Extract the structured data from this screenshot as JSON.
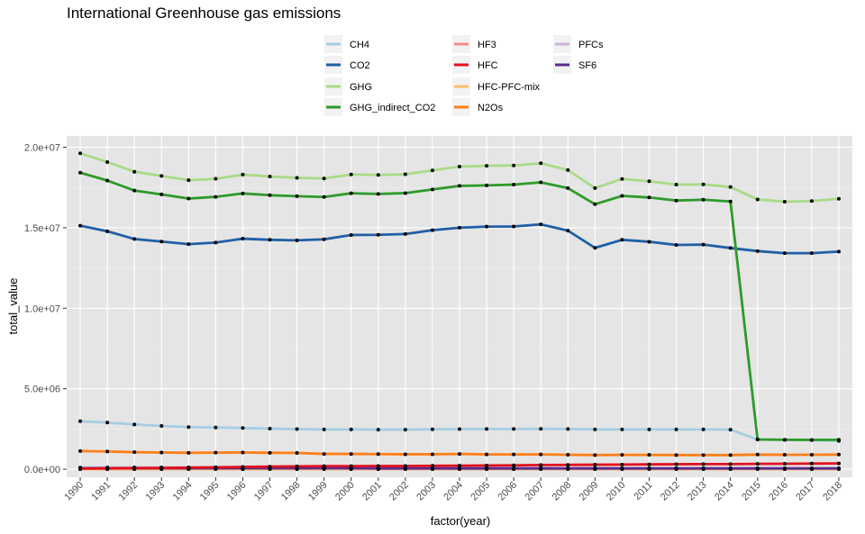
{
  "chart_data": {
    "type": "line",
    "title": "International Greenhouse gas emissions",
    "xlabel": "factor(year)",
    "ylabel": "total_value",
    "categories": [
      "1990",
      "1991",
      "1992",
      "1993",
      "1994",
      "1995",
      "1996",
      "1997",
      "1998",
      "1999",
      "2000",
      "2001",
      "2002",
      "2003",
      "2004",
      "2005",
      "2006",
      "2007",
      "2008",
      "2009",
      "2010",
      "2011",
      "2012",
      "2013",
      "2014",
      "2015",
      "2016",
      "2017",
      "2018"
    ],
    "ylim": [
      -500000,
      20700000
    ],
    "y_ticks": [
      0,
      5000000,
      10000000,
      15000000,
      20000000
    ],
    "y_tick_labels": [
      "0.0e+00",
      "5.0e+06",
      "1.0e+07",
      "1.5e+07",
      "2.0e+07"
    ],
    "grid": true,
    "legend_position": "top",
    "panel_background": "#e5e5e5",
    "series": [
      {
        "name": "CH4",
        "color": "#a6cee3",
        "values": [
          2980000,
          2900000,
          2780000,
          2690000,
          2620000,
          2590000,
          2560000,
          2520000,
          2490000,
          2470000,
          2470000,
          2460000,
          2460000,
          2480000,
          2490000,
          2500000,
          2500000,
          2510000,
          2500000,
          2470000,
          2470000,
          2470000,
          2470000,
          2470000,
          2460000,
          1840000,
          1820000,
          1810000,
          1760000
        ]
      },
      {
        "name": "CO2",
        "color": "#1f5fa6",
        "values": [
          15130000,
          14780000,
          14300000,
          14140000,
          13980000,
          14080000,
          14320000,
          14250000,
          14220000,
          14280000,
          14550000,
          14560000,
          14610000,
          14850000,
          15000000,
          15070000,
          15080000,
          15210000,
          14820000,
          13750000,
          14250000,
          14130000,
          13930000,
          13950000,
          13740000,
          13550000,
          13420000,
          13420000,
          13520000
        ]
      },
      {
        "name": "GHG",
        "color": "#a8db87",
        "values": [
          19620000,
          19080000,
          18480000,
          18220000,
          17950000,
          18040000,
          18300000,
          18180000,
          18100000,
          18060000,
          18310000,
          18280000,
          18320000,
          18560000,
          18800000,
          18850000,
          18870000,
          19010000,
          18580000,
          17460000,
          18030000,
          17890000,
          17680000,
          17690000,
          17530000,
          16760000,
          16620000,
          16660000,
          16800000
        ]
      },
      {
        "name": "GHG_indirect_CO2",
        "color": "#2e9a2a",
        "values": [
          18420000,
          17930000,
          17310000,
          17070000,
          16810000,
          16920000,
          17130000,
          17020000,
          16960000,
          16910000,
          17140000,
          17100000,
          17150000,
          17380000,
          17600000,
          17630000,
          17680000,
          17820000,
          17460000,
          16460000,
          16980000,
          16880000,
          16690000,
          16740000,
          16630000,
          1850000,
          1830000,
          1820000,
          1830000
        ]
      },
      {
        "name": "HF3",
        "color": "#f28b8b",
        "values": [
          10000,
          10000,
          10000,
          10000,
          10000,
          10000,
          10000,
          10000,
          10000,
          10000,
          10000,
          10000,
          10000,
          10000,
          10000,
          10000,
          10000,
          10000,
          10000,
          10000,
          10000,
          10000,
          10000,
          10000,
          10000,
          10000,
          10000,
          10000,
          10000
        ]
      },
      {
        "name": "HFC",
        "color": "#e3101e",
        "values": [
          40000,
          50000,
          70000,
          80000,
          100000,
          120000,
          140000,
          160000,
          180000,
          190000,
          190000,
          200000,
          200000,
          210000,
          220000,
          230000,
          240000,
          260000,
          270000,
          280000,
          290000,
          300000,
          310000,
          320000,
          320000,
          330000,
          340000,
          350000,
          360000
        ]
      },
      {
        "name": "HFC-PFC-mix",
        "color": "#fdbf6f",
        "values": [
          5000,
          5000,
          5000,
          5000,
          5000,
          5000,
          5000,
          5000,
          5000,
          5000,
          5000,
          5000,
          5000,
          5000,
          5000,
          5000,
          5000,
          5000,
          5000,
          5000,
          5000,
          5000,
          5000,
          5000,
          5000,
          5000,
          5000,
          5000,
          5000
        ]
      },
      {
        "name": "N2Os",
        "color": "#ff7f18",
        "values": [
          1130000,
          1100000,
          1060000,
          1040000,
          1020000,
          1030000,
          1040000,
          1020000,
          1010000,
          950000,
          950000,
          940000,
          930000,
          930000,
          950000,
          920000,
          920000,
          920000,
          900000,
          880000,
          890000,
          890000,
          880000,
          880000,
          880000,
          910000,
          900000,
          900000,
          910000
        ]
      },
      {
        "name": "PFCs",
        "color": "#cab2d6",
        "values": [
          100000,
          110000,
          110000,
          110000,
          110000,
          110000,
          110000,
          100000,
          90000,
          90000,
          80000,
          80000,
          70000,
          70000,
          70000,
          70000,
          70000,
          70000,
          60000,
          60000,
          60000,
          60000,
          60000,
          60000,
          60000,
          60000,
          60000,
          60000,
          60000
        ]
      },
      {
        "name": "SF6",
        "color": "#5b2a91",
        "values": [
          60000,
          60000,
          60000,
          60000,
          60000,
          60000,
          60000,
          60000,
          60000,
          60000,
          60000,
          50000,
          50000,
          50000,
          50000,
          50000,
          50000,
          50000,
          50000,
          50000,
          50000,
          50000,
          50000,
          50000,
          50000,
          50000,
          50000,
          50000,
          50000
        ]
      }
    ]
  }
}
